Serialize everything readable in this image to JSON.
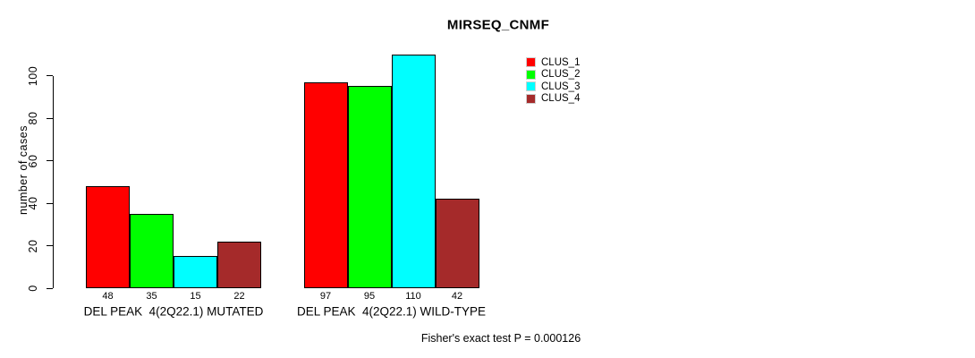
{
  "title": "MIRSEQ_CNMF",
  "footer": "Fisher's exact test P = 0.000126",
  "chart_data": {
    "type": "bar",
    "title": "MIRSEQ_CNMF",
    "xlabel": "",
    "ylabel": "number of cases",
    "ylim": [
      0,
      110
    ],
    "yticks": [
      0,
      20,
      40,
      60,
      80,
      100
    ],
    "grid": false,
    "legend_position": "top-right",
    "categories": [
      "DEL PEAK  4(2Q22.1) MUTATED",
      "DEL PEAK  4(2Q22.1) WILD-TYPE"
    ],
    "series": [
      {
        "name": "CLUS_1",
        "color": "#ff0000",
        "values": [
          48,
          97
        ]
      },
      {
        "name": "CLUS_2",
        "color": "#00ff00",
        "values": [
          35,
          95
        ]
      },
      {
        "name": "CLUS_3",
        "color": "#00ffff",
        "values": [
          15,
          110
        ]
      },
      {
        "name": "CLUS_4",
        "color": "#a52a2a",
        "values": [
          22,
          42
        ]
      }
    ],
    "annotation": "Fisher's exact test P = 0.000126"
  }
}
